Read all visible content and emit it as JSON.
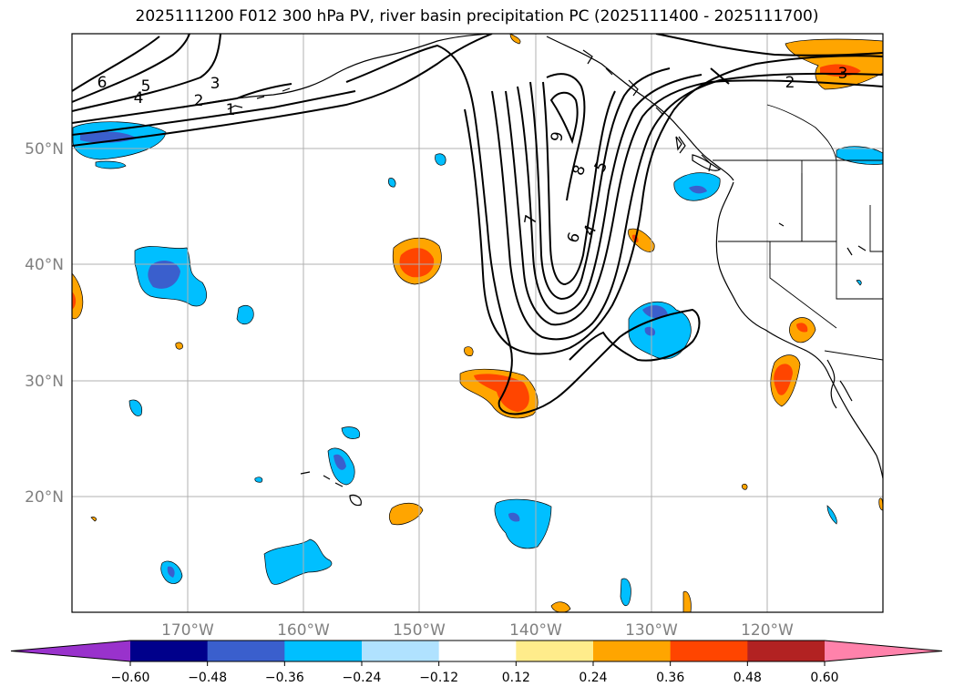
{
  "title": "2025111200 F012 300 hPa PV, river basin precipitation PC (2025111400 - 2025111700)",
  "map": {
    "lat_labels": [
      "50°N",
      "40°N",
      "30°N",
      "20°N"
    ],
    "lon_labels": [
      "170°W",
      "160°W",
      "150°W",
      "140°W",
      "130°W",
      "120°W"
    ],
    "pv_contour_labels": [
      "6",
      "5",
      "4",
      "3",
      "2",
      "1",
      "2",
      "3",
      "9",
      "8",
      "5",
      "7",
      "6",
      "4"
    ]
  },
  "colorbar": {
    "colors": [
      "#9932CC",
      "#00008B",
      "#3A5FCD",
      "#00BFFF",
      "#B0E2FF",
      "#FFFFFF",
      "#FFEC8B",
      "#FFA500",
      "#FF4500",
      "#B22222",
      "#FF82AB"
    ],
    "tick_labels": [
      "−0.60",
      "−0.48",
      "−0.36",
      "−0.24",
      "−0.12",
      "0.12",
      "0.24",
      "0.36",
      "0.48",
      "0.60"
    ]
  }
}
